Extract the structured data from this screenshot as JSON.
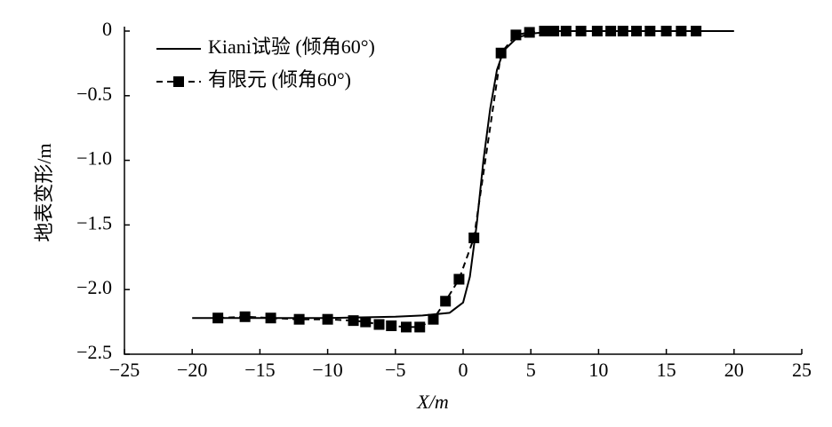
{
  "chart_data": {
    "type": "line",
    "x_label": "X/m",
    "y_label": "地表变形/m",
    "xlim": [
      -25,
      25
    ],
    "ylim": [
      -2.5,
      0
    ],
    "xticks": [
      {
        "value": -25,
        "label": "−25"
      },
      {
        "value": -20,
        "label": "−20"
      },
      {
        "value": -15,
        "label": "−15"
      },
      {
        "value": -10,
        "label": "−10"
      },
      {
        "value": -5,
        "label": "−5"
      },
      0,
      5,
      10,
      15,
      20,
      25
    ],
    "yticks": [
      {
        "value": -2.5,
        "label": "−2.5"
      },
      {
        "value": -2,
        "label": "−2.0"
      },
      {
        "value": -1.5,
        "label": "−1.5"
      },
      {
        "value": -1,
        "label": "−1.0"
      },
      {
        "value": -0.5,
        "label": "−0.5"
      },
      0
    ],
    "grid": false,
    "legend_position": "upper-left",
    "series": [
      {
        "name": "Kiani试验 (倾角60°)",
        "color": "#000000",
        "dashed": false,
        "marker": "none",
        "x": [
          -20,
          -15,
          -10,
          -5,
          -3,
          -1,
          0,
          0.5,
          1,
          1.5,
          2,
          2.5,
          3,
          4,
          5,
          7,
          10,
          15,
          20
        ],
        "values": [
          -2.22,
          -2.22,
          -2.22,
          -2.21,
          -2.2,
          -2.18,
          -2.1,
          -1.9,
          -1.5,
          -1.0,
          -0.6,
          -0.3,
          -0.15,
          -0.05,
          -0.02,
          0,
          0,
          0,
          0
        ]
      },
      {
        "name": "有限元 (倾角60°)",
        "color": "#000000",
        "dashed": true,
        "marker": "square",
        "x": [
          -18.1,
          -16.1,
          -14.2,
          -12.1,
          -10,
          -8.1,
          -7.2,
          -6.2,
          -5.3,
          -4.2,
          -3.2,
          -2.2,
          -1.3,
          -0.3,
          0.8,
          2.8,
          3.9,
          4.9,
          6,
          6.7,
          7.6,
          8.7,
          9.9,
          10.9,
          11.8,
          12.8,
          13.8,
          15,
          16.1,
          17.2
        ],
        "values": [
          -2.22,
          -2.21,
          -2.22,
          -2.23,
          -2.23,
          -2.24,
          -2.25,
          -2.27,
          -2.28,
          -2.29,
          -2.29,
          -2.23,
          -2.09,
          -1.92,
          -1.6,
          -0.17,
          -0.03,
          -0.01,
          0,
          0,
          0,
          0,
          0,
          0,
          0,
          0,
          0,
          0,
          0,
          0
        ]
      }
    ]
  }
}
